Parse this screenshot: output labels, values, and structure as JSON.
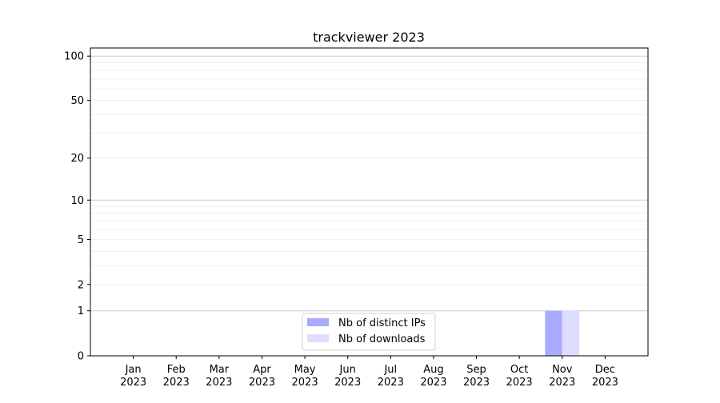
{
  "chart_data": {
    "type": "bar",
    "title": "trackviewer 2023",
    "xlabel": "",
    "ylabel": "",
    "categories": [
      "Jan\n2023",
      "Feb\n2023",
      "Mar\n2023",
      "Apr\n2023",
      "May\n2023",
      "Jun\n2023",
      "Jul\n2023",
      "Aug\n2023",
      "Sep\n2023",
      "Oct\n2023",
      "Nov\n2023",
      "Dec\n2023"
    ],
    "series": [
      {
        "name": "Nb of distinct IPs",
        "color": "#aaaaff",
        "values": [
          0,
          0,
          0,
          0,
          0,
          0,
          0,
          0,
          0,
          0,
          1,
          0
        ]
      },
      {
        "name": "Nb of downloads",
        "color": "#ddddff",
        "values": [
          0,
          0,
          0,
          0,
          0,
          0,
          0,
          0,
          0,
          0,
          1,
          0
        ]
      }
    ],
    "yscale": "log(1+y)",
    "yticks": [
      0,
      1,
      2,
      5,
      10,
      20,
      50,
      100
    ],
    "ylim": [
      0,
      113
    ],
    "grid": true,
    "legend_position": "bottom-center"
  }
}
